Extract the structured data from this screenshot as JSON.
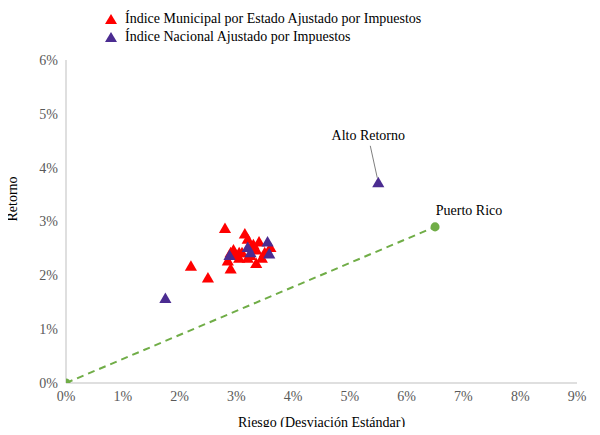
{
  "chart_data": {
    "type": "scatter",
    "x_label": "Riesgo (Desviación Estándar)",
    "y_label": "Retorno",
    "xlim": [
      0,
      9
    ],
    "xticks": [
      {
        "value": 0,
        "label": "0%"
      },
      {
        "value": 1,
        "label": "1%"
      },
      {
        "value": 2,
        "label": "2%"
      },
      {
        "value": 3,
        "label": "3%"
      },
      {
        "value": 4,
        "label": "4%"
      },
      {
        "value": 5,
        "label": "5%"
      },
      {
        "value": 6,
        "label": "6%"
      },
      {
        "value": 7,
        "label": "7%"
      },
      {
        "value": 8,
        "label": "8%"
      },
      {
        "value": 9,
        "label": "9%"
      }
    ],
    "ylim": [
      0,
      6
    ],
    "yticks": [
      {
        "value": 0,
        "label": "0%"
      },
      {
        "value": 1,
        "label": "1%"
      },
      {
        "value": 2,
        "label": "2%"
      },
      {
        "value": 3,
        "label": "3%"
      },
      {
        "value": 4,
        "label": "4%"
      },
      {
        "value": 5,
        "label": "5%"
      },
      {
        "value": 6,
        "label": "6%"
      }
    ],
    "grid": false,
    "legend": "top-left",
    "series": [
      {
        "name": "Índice Municipal por Estado Ajustado por Impuestos",
        "color": "#ff0000",
        "marker": "triangle",
        "x": [
          2.8,
          2.2,
          2.5,
          2.85,
          2.9,
          2.9,
          2.95,
          3.0,
          3.05,
          3.1,
          3.15,
          3.2,
          3.2,
          3.25,
          3.3,
          3.35,
          3.35,
          3.4,
          3.45,
          3.5,
          3.6,
          3.05,
          3.25
        ],
        "y": [
          2.85,
          2.15,
          1.93,
          2.25,
          2.1,
          2.4,
          2.45,
          2.35,
          2.3,
          2.4,
          2.75,
          2.65,
          2.3,
          2.5,
          2.55,
          2.2,
          2.45,
          2.6,
          2.3,
          2.4,
          2.5,
          2.4,
          2.35
        ]
      },
      {
        "name": "Índice Nacional Ajustado por Impuestos",
        "color": "#4b2c91",
        "marker": "triangle",
        "x": [
          1.75,
          2.88,
          3.2,
          3.25,
          3.55,
          3.58,
          5.5
        ],
        "y": [
          1.55,
          2.35,
          2.5,
          2.4,
          2.6,
          2.38,
          3.7
        ]
      }
    ],
    "lines": [
      {
        "x": [
          0,
          6.5
        ],
        "y": [
          0,
          2.9
        ],
        "color": "#70ad47",
        "line_style": "dashed",
        "marker": "circle"
      }
    ],
    "annotations": [
      {
        "text": "Alto Retorno",
        "x": 5.5,
        "y": 3.7
      },
      {
        "text": "Puerto Rico",
        "x": 6.5,
        "y": 2.9
      }
    ]
  }
}
